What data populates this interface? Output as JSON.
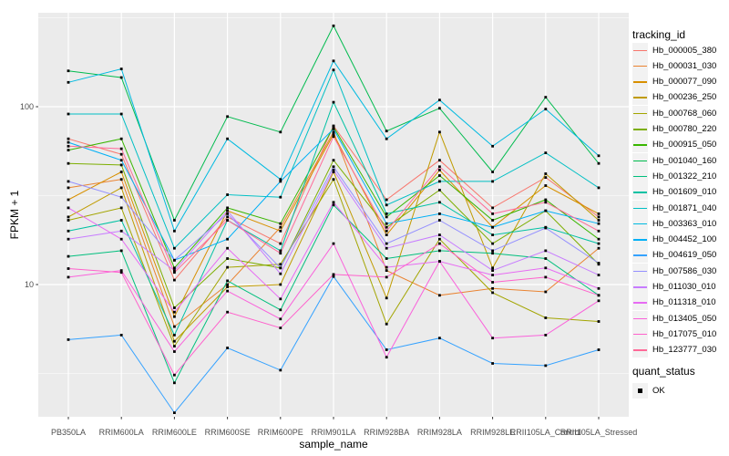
{
  "chart_data": {
    "type": "line",
    "title": "",
    "xlabel": "sample_name",
    "ylabel": "FPKM + 1",
    "y_scale": "log10",
    "ylim": [
      1.8,
      340
    ],
    "y_ticks": [
      10,
      100
    ],
    "y_minor_ticks": [
      3.162,
      31.62,
      316.2
    ],
    "grid": "on",
    "panel_bg": "#EBEBEB",
    "grid_color": "#FFFFFF",
    "tick_label_color": "#4D4D4D",
    "point_shape": "filled-black-square",
    "categories": [
      "PB350LA",
      "RRIM600LA",
      "RRIM600LE",
      "RRIM600SE",
      "RRIM600PE",
      "RRIM901LA",
      "RRIM928BA",
      "RRIM928LA",
      "RRIM928LE",
      "RRII105LA_Control",
      "RRII105LA_Stressed"
    ],
    "legend": {
      "title": "tracking_id",
      "position": "right"
    },
    "quant_legend": {
      "title": "quant_status",
      "items": [
        "OK"
      ]
    },
    "series": [
      {
        "name": "Hb_000005_380",
        "color": "#F8766D",
        "values": [
          66,
          54,
          10.6,
          24,
          17,
          78,
          30,
          50,
          27,
          40,
          24
        ]
      },
      {
        "name": "Hb_000031_030",
        "color": "#EA8331",
        "values": [
          35,
          39,
          5.8,
          10,
          21,
          72,
          12,
          8.7,
          9.5,
          9.1,
          16
        ]
      },
      {
        "name": "Hb_000077_090",
        "color": "#D89000",
        "values": [
          30,
          43,
          6.6,
          26,
          20,
          70,
          19,
          44,
          21,
          36,
          25
        ]
      },
      {
        "name": "Hb_000236_250",
        "color": "#C09B00",
        "values": [
          24,
          35,
          4.8,
          9.7,
          10,
          43,
          8.4,
          72,
          12.4,
          42,
          23
        ]
      },
      {
        "name": "Hb_000768_060",
        "color": "#A3A500",
        "values": [
          23,
          27,
          4.5,
          12.5,
          13,
          39,
          6,
          18,
          9,
          6.5,
          6.2
        ]
      },
      {
        "name": "Hb_000780_220",
        "color": "#7CAE00",
        "values": [
          48,
          47,
          7.4,
          14,
          12.4,
          50,
          21,
          34,
          17,
          26,
          13
        ]
      },
      {
        "name": "Hb_000915_050",
        "color": "#39B600",
        "values": [
          57,
          66,
          12.4,
          27,
          22,
          77,
          24,
          41,
          23,
          30,
          18
        ]
      },
      {
        "name": "Hb_001040_160",
        "color": "#00BB4E",
        "values": [
          159,
          146,
          23,
          88,
          72,
          285,
          73,
          98,
          43,
          113,
          48
        ]
      },
      {
        "name": "Hb_001322_210",
        "color": "#00BF7D",
        "values": [
          14.4,
          15.5,
          2.8,
          10.5,
          7.2,
          28,
          14,
          15.5,
          15,
          14,
          8.7
        ]
      },
      {
        "name": "Hb_001609_010",
        "color": "#00C1A3",
        "values": [
          20,
          23,
          5.2,
          23,
          15.5,
          106,
          25,
          29,
          19,
          21,
          17
        ]
      },
      {
        "name": "Hb_001871_040",
        "color": "#00BFC4",
        "values": [
          91,
          91,
          16,
          32,
          31,
          161,
          28,
          38,
          38,
          55,
          35
        ]
      },
      {
        "name": "Hb_003363_010",
        "color": "#00BAE0",
        "values": [
          137,
          163,
          20,
          66,
          39,
          181,
          66,
          109,
          60,
          97,
          53
        ]
      },
      {
        "name": "Hb_004452_100",
        "color": "#00B0F6",
        "values": [
          63,
          50,
          13.7,
          18,
          38,
          75,
          22,
          25,
          21,
          26,
          22
        ]
      },
      {
        "name": "Hb_004619_050",
        "color": "#35A2FF",
        "values": [
          4.9,
          5.2,
          1.9,
          4.4,
          3.3,
          11.1,
          4.3,
          5,
          3.6,
          3.5,
          4.3
        ]
      },
      {
        "name": "Hb_007586_030",
        "color": "#9590FF",
        "values": [
          38,
          31,
          13.7,
          25,
          12.4,
          46,
          17,
          23,
          15.5,
          20.8,
          13.2
        ]
      },
      {
        "name": "Hb_011030_010",
        "color": "#C77CFF",
        "values": [
          18,
          20,
          12,
          26,
          11.5,
          44,
          16,
          19,
          12,
          15.5,
          11.3
        ]
      },
      {
        "name": "Hb_011318_010",
        "color": "#E76BF3",
        "values": [
          27,
          18,
          7,
          16,
          8.3,
          29,
          12.5,
          13.5,
          11.3,
          12.4,
          9.5
        ]
      },
      {
        "name": "Hb_013405_050",
        "color": "#FA62DB",
        "values": [
          11,
          12,
          4.2,
          9.2,
          6.4,
          17,
          3.9,
          13.5,
          5,
          5.2,
          8.1
        ]
      },
      {
        "name": "Hb_017075_010",
        "color": "#FF61CC",
        "values": [
          12.3,
          11.7,
          3.1,
          7,
          5.7,
          11.4,
          11,
          17,
          10.3,
          11,
          8.7
        ]
      },
      {
        "name": "Hb_123777_030",
        "color": "#FF6A98",
        "values": [
          60,
          58,
          11.7,
          23,
          15,
          68,
          20,
          46,
          25,
          29,
          20
        ]
      }
    ]
  }
}
